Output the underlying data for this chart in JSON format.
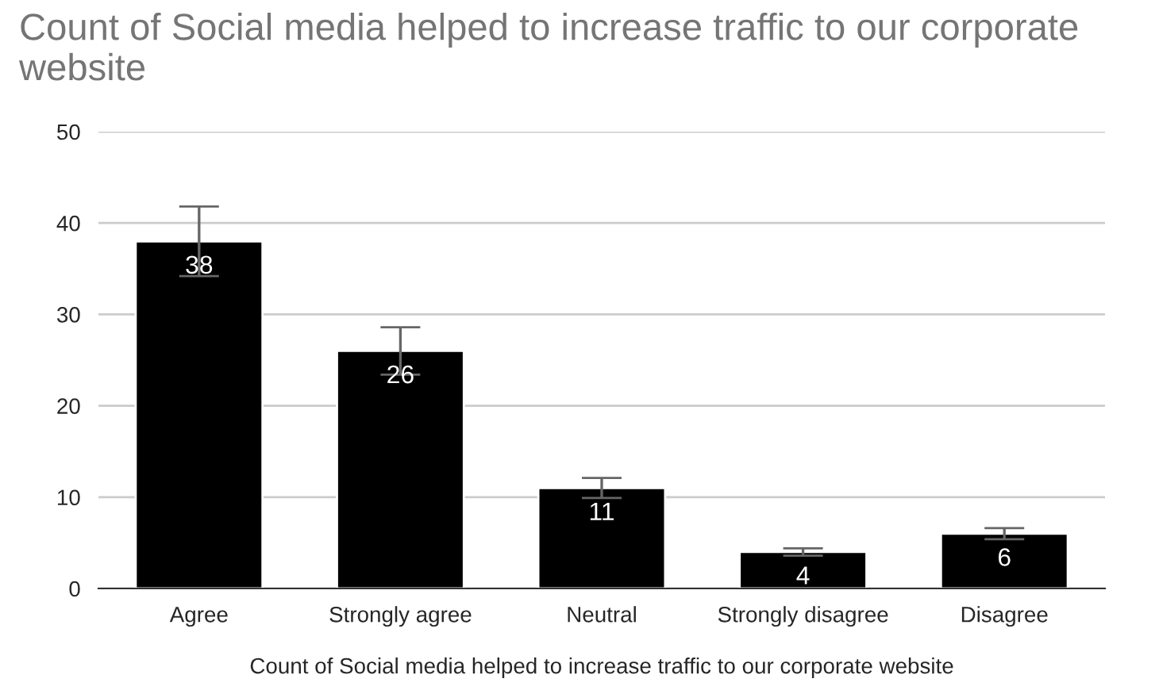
{
  "chart_data": {
    "type": "bar",
    "title": "Count of Social media helped to increase traffic to our corporate website",
    "xlabel": "Count of Social media helped to increase traffic to our corporate website",
    "categories": [
      "Agree",
      "Strongly agree",
      "Neutral",
      "Strongly disagree",
      "Disagree"
    ],
    "values": [
      38,
      26,
      11,
      4,
      6
    ],
    "errors": [
      3.8,
      2.6,
      1.1,
      0.4,
      0.6
    ],
    "color": "#000000",
    "ylim": [
      0,
      50
    ],
    "yticks": [
      0,
      10,
      20,
      30,
      40,
      50
    ],
    "grid": "y",
    "data_labels": true
  }
}
